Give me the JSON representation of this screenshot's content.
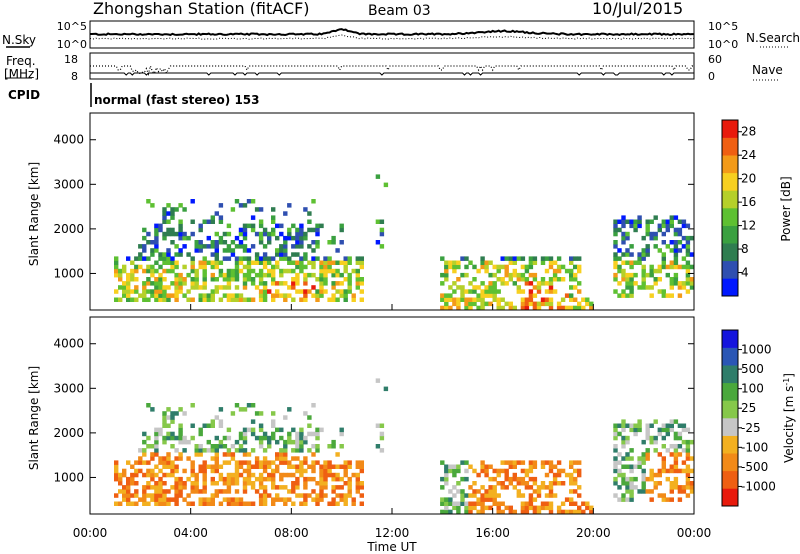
{
  "header": {
    "title": "Zhongshan Station (fitACF)",
    "beam": "Beam 03",
    "date": "10/Jul/2015"
  },
  "top_panels": {
    "nsky_label": "N.Sky",
    "nsky_ticks": [
      "10^5",
      "10^0"
    ],
    "nsearch_label": "N.Search",
    "nsearch_ticks": [
      "10^5",
      "10^0"
    ],
    "freq_label_1": "Freq.",
    "freq_label_2": "[MHz]",
    "freq_ticks": [
      "18",
      "8"
    ],
    "nave_label": "Nave",
    "nave_ticks": [
      "60",
      "0"
    ],
    "cpid_label": "CPID",
    "cpid_text": "normal (fast stereo) 153"
  },
  "colors": {
    "power": [
      "#0018ff",
      "#2f4fb0",
      "#2f7d50",
      "#3aa040",
      "#5ec032",
      "#b5d02a",
      "#f7d020",
      "#f39a18",
      "#ef5f12",
      "#e81a0c"
    ],
    "velocity": [
      "#1515dd",
      "#2a56b5",
      "#2f7d6a",
      "#4aa83c",
      "#86c84a",
      "#c6c6c6",
      "#f3b020",
      "#f28a18",
      "#ef5f12",
      "#e81a0c"
    ]
  },
  "chart_data": [
    {
      "type": "heatmap",
      "name": "power",
      "ylabel": "Slant Range [km]",
      "ylim": [
        180,
        4600
      ],
      "xlim": [
        0,
        24
      ],
      "y_ticks": [
        "1000",
        "2000",
        "3000",
        "4000"
      ],
      "colorbar_label": "Power [dB]",
      "colorbar_ticks": [
        "4",
        "8",
        "12",
        "16",
        "20",
        "24",
        "28"
      ],
      "colorbar_range": [
        0,
        30
      ]
    },
    {
      "type": "heatmap",
      "name": "velocity",
      "ylabel": "Slant Range [km]",
      "ylim": [
        180,
        4600
      ],
      "xlim": [
        0,
        24
      ],
      "y_ticks": [
        "1000",
        "2000",
        "3000",
        "4000"
      ],
      "colorbar_label": "Velocity [m s^-1]",
      "colorbar_ticks": [
        "1000",
        "500",
        "100",
        "25",
        "-25",
        "-100",
        "-500",
        "-1000"
      ]
    }
  ],
  "x_axis": {
    "ticks": [
      "00:00",
      "04:00",
      "08:00",
      "12:00",
      "16:00",
      "20:00",
      "00:00"
    ],
    "label": "Time UT"
  }
}
